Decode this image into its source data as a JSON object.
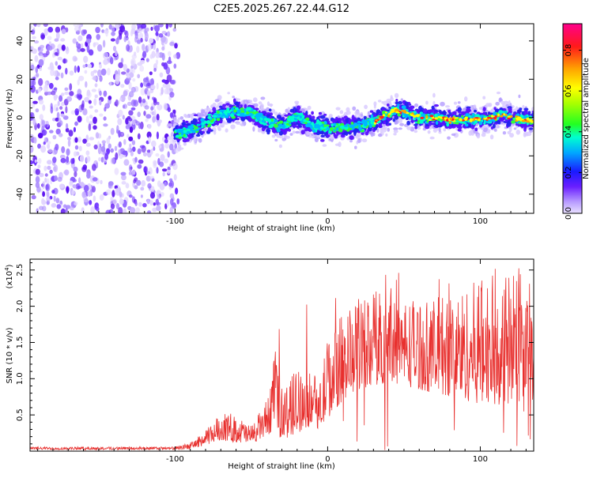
{
  "figure": {
    "title": "C2E5.2025.267.22.44.G12"
  },
  "colors": {
    "snr_line": "#e8302e",
    "noise_dots": "#7a3cff",
    "colormap": [
      "#c9b6ff",
      "#7a3cff",
      "#2200ff",
      "#00b5ff",
      "#00ffcc",
      "#33ff33",
      "#ffff00",
      "#ffa500",
      "#ff0000",
      "#ff00aa"
    ]
  },
  "chart_data": [
    {
      "type": "heatmap",
      "title": "",
      "xlabel": "Height of straight line (km)",
      "ylabel": "Frequency (Hz)",
      "xlim": [
        -195,
        135
      ],
      "ylim": [
        -50,
        49
      ],
      "xticks": [
        -100,
        0,
        100
      ],
      "yticks": [
        -40,
        -20,
        0,
        20,
        40
      ],
      "xtick_labels": [
        "-100",
        "0",
        "100"
      ],
      "ytick_labels": [
        "-40",
        "-20",
        "0",
        "20",
        "40"
      ],
      "noise_region_x": [
        -195,
        -100
      ],
      "ridge": {
        "x": [
          -100,
          -90,
          -80,
          -70,
          -60,
          -50,
          -40,
          -30,
          -20,
          -10,
          0,
          10,
          20,
          30,
          40,
          45,
          50,
          60,
          70,
          80,
          90,
          100,
          110,
          115,
          120,
          130,
          135
        ],
        "freq": [
          -8,
          -7,
          -3,
          2,
          3,
          3,
          -2,
          -5,
          1,
          -4,
          -5,
          -5,
          -5,
          -2,
          2,
          4,
          3,
          0,
          0,
          -1,
          -1,
          -1,
          0,
          2,
          0,
          -1,
          -2
        ]
      },
      "colorbar": {
        "label": "Normalized spectral amplitude",
        "range": [
          0.0,
          0.93
        ],
        "ticks": [
          0.0,
          0.2,
          0.4,
          0.6,
          0.8
        ],
        "tick_labels": [
          "0.0",
          "0.2",
          "0.4",
          "0.6",
          "0.8"
        ]
      }
    },
    {
      "type": "line",
      "title": "",
      "xlabel": "Height of straight line (km)",
      "ylabel": "SNR (10 * v/v)",
      "y_scale_label": "(x10",
      "y_scale_exp": "4",
      "y_scale_close": ")",
      "xlim": [
        -195,
        135
      ],
      "ylim": [
        0,
        26500
      ],
      "xticks": [
        -100,
        0,
        100
      ],
      "yticks": [
        5000,
        10000,
        15000,
        20000,
        25000
      ],
      "xtick_labels": [
        "-100",
        "0",
        "100"
      ],
      "ytick_labels": [
        "0.5",
        "1.0",
        "1.5",
        "2.0",
        "2.5"
      ],
      "envelope": {
        "x": [
          -195,
          -100,
          -90,
          -80,
          -70,
          -60,
          -50,
          -40,
          -35,
          -30,
          -20,
          -10,
          -5,
          0,
          10,
          20,
          30,
          40,
          50,
          60,
          70,
          80,
          90,
          100,
          110,
          120,
          130,
          135
        ],
        "low": [
          200,
          200,
          300,
          800,
          1500,
          1200,
          1000,
          2000,
          3000,
          1500,
          2500,
          3500,
          3000,
          4500,
          7000,
          8500,
          9000,
          9500,
          9000,
          8500,
          8000,
          7500,
          7000,
          6500,
          6500,
          6000,
          5000,
          4000
        ],
        "high": [
          600,
          600,
          1200,
          2800,
          5500,
          5000,
          3500,
          7000,
          13000,
          9000,
          11500,
          12000,
          9500,
          16000,
          19000,
          21000,
          22500,
          22000,
          21500,
          21000,
          21000,
          22000,
          22500,
          24000,
          24500,
          25000,
          24000,
          23500
        ]
      }
    }
  ]
}
